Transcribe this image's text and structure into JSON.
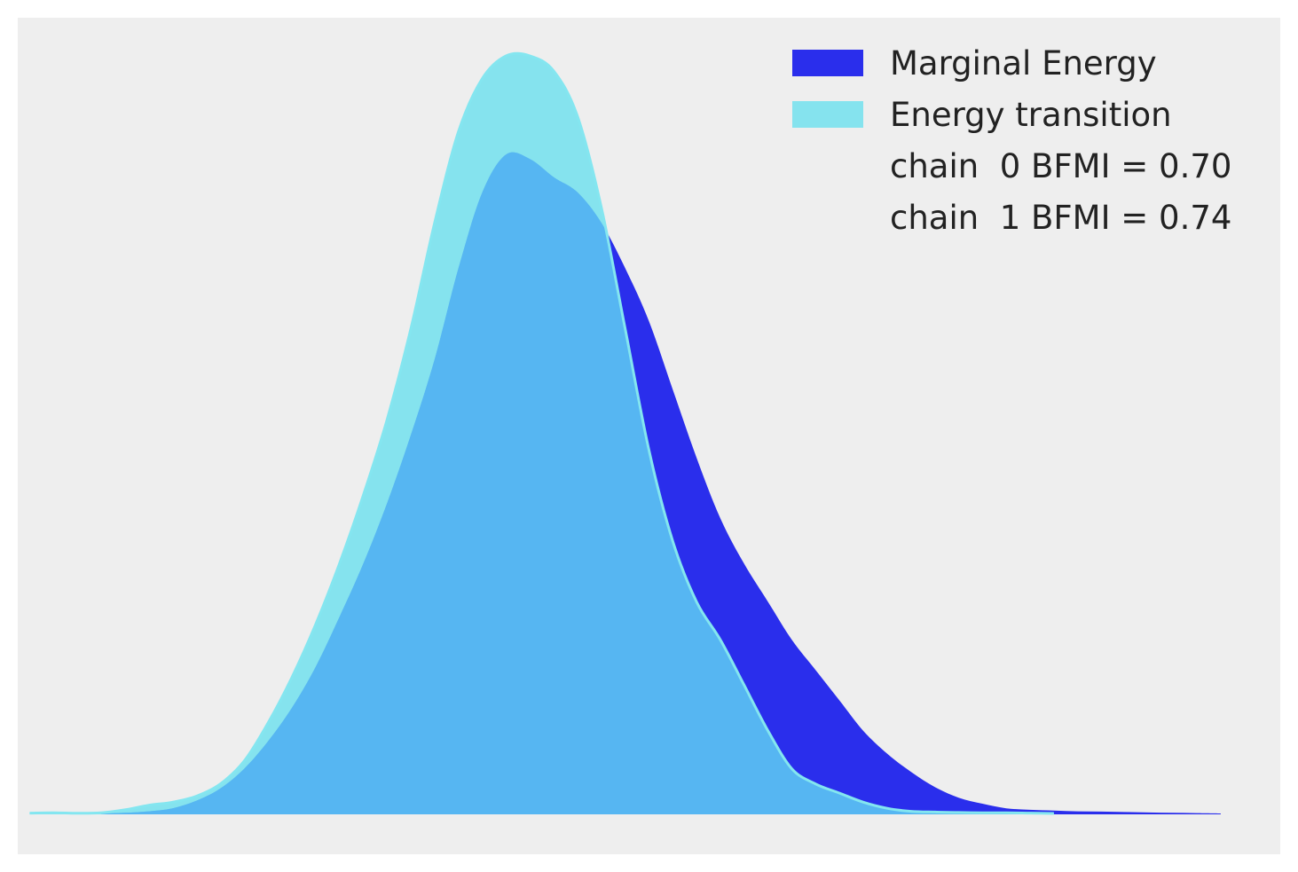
{
  "chart_data": {
    "type": "area",
    "title": "",
    "xlabel": "",
    "ylabel": "",
    "grid": false,
    "x_ticks_visible": false,
    "y_ticks_visible": false,
    "legend_placement": "top-right",
    "legend": {
      "entries": [
        "Marginal Energy",
        "Energy transition"
      ],
      "notes": [
        "chain  0 BFMI = 0.70",
        "chain  1 BFMI = 0.74"
      ]
    },
    "colors": {
      "background": "#eeeeee",
      "marginal_energy": "#2a2eec",
      "energy_transition": "#6ae0ee",
      "energy_transition_edge": "#84e6f0",
      "overlap": "#56b6f2",
      "text": "#222222"
    },
    "xlim": [
      -4.3,
      6.3
    ],
    "ylim": [
      0,
      0.5
    ],
    "series": [
      {
        "name": "Marginal Energy",
        "x": [
          -3.6,
          -3.4,
          -3.2,
          -3.0,
          -2.8,
          -2.6,
          -2.4,
          -2.2,
          -2.0,
          -1.8,
          -1.6,
          -1.4,
          -1.2,
          -1.0,
          -0.8,
          -0.6,
          -0.4,
          -0.2,
          0.0,
          0.2,
          0.4,
          0.6,
          0.8,
          1.0,
          1.2,
          1.4,
          1.6,
          1.8,
          2.0,
          2.2,
          2.4,
          2.6,
          2.8,
          3.0,
          3.2,
          3.4,
          3.6,
          3.8,
          4.0,
          4.2,
          4.4,
          4.6,
          4.8,
          5.0,
          5.2,
          5.4,
          5.6,
          5.8
        ],
        "values": [
          0.0005,
          0.001,
          0.002,
          0.004,
          0.009,
          0.017,
          0.03,
          0.048,
          0.07,
          0.097,
          0.13,
          0.165,
          0.205,
          0.25,
          0.3,
          0.36,
          0.41,
          0.435,
          0.432,
          0.42,
          0.41,
          0.39,
          0.36,
          0.325,
          0.28,
          0.235,
          0.195,
          0.165,
          0.14,
          0.115,
          0.095,
          0.075,
          0.055,
          0.04,
          0.028,
          0.018,
          0.011,
          0.007,
          0.004,
          0.003,
          0.0025,
          0.002,
          0.0018,
          0.0015,
          0.0012,
          0.001,
          0.0008,
          0.0006
        ]
      },
      {
        "name": "Energy transition",
        "x": [
          -4.2,
          -4.0,
          -3.8,
          -3.6,
          -3.4,
          -3.2,
          -3.0,
          -2.8,
          -2.6,
          -2.4,
          -2.2,
          -2.0,
          -1.8,
          -1.6,
          -1.4,
          -1.2,
          -1.0,
          -0.8,
          -0.6,
          -0.4,
          -0.2,
          0.0,
          0.2,
          0.4,
          0.6,
          0.8,
          1.0,
          1.2,
          1.4,
          1.6,
          1.8,
          2.0,
          2.2,
          2.4,
          2.6,
          2.8,
          3.0,
          3.2,
          3.4,
          3.6,
          3.8,
          4.0,
          4.2,
          4.4
        ],
        "values": [
          0.0008,
          0.001,
          0.0007,
          0.001,
          0.003,
          0.006,
          0.008,
          0.012,
          0.02,
          0.035,
          0.06,
          0.09,
          0.125,
          0.165,
          0.21,
          0.26,
          0.32,
          0.39,
          0.45,
          0.485,
          0.5,
          0.5,
          0.49,
          0.46,
          0.4,
          0.32,
          0.24,
          0.18,
          0.14,
          0.115,
          0.085,
          0.055,
          0.03,
          0.02,
          0.014,
          0.008,
          0.004,
          0.002,
          0.0015,
          0.0012,
          0.001,
          0.001,
          0.0008,
          0.0006
        ]
      }
    ]
  }
}
